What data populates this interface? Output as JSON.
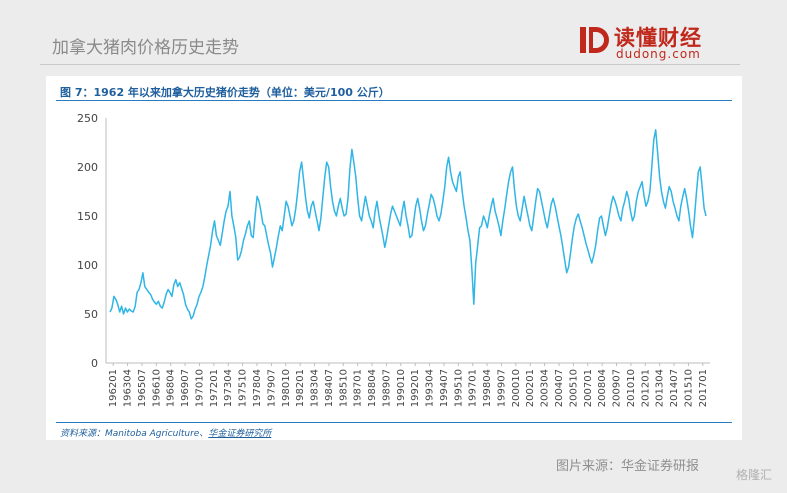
{
  "header": {
    "title": "加拿大猪肉价格历史走势"
  },
  "logo": {
    "name": "读懂财经",
    "domain": "dudong.com"
  },
  "figure": {
    "title": "图 7：1962 年以来加拿大历史猪价走势（单位：美元/100 公斤）",
    "source_prefix": "资料来源：Manitoba Agriculture、",
    "source_highlight": "华金证券研究所"
  },
  "footer": {
    "source": "图片来源：华金证券研报",
    "watermark": "格隆汇"
  },
  "colors": {
    "line": "#2fb5e6",
    "title_blue": "#1f5f9e",
    "logo_red": "#c0281c"
  },
  "chart_data": {
    "type": "line",
    "title": "",
    "xlabel": "",
    "ylabel": "",
    "ylim": [
      0,
      250
    ],
    "yticks": [
      0,
      50,
      100,
      150,
      200,
      250
    ],
    "grid": false,
    "x_ticks": [
      "196201",
      "196304",
      "196507",
      "196610",
      "196804",
      "196907",
      "197010",
      "197201",
      "197304",
      "197510",
      "197804",
      "197907",
      "198010",
      "198201",
      "198304",
      "198407",
      "198510",
      "198701",
      "198804",
      "198907",
      "199010",
      "199201",
      "199304",
      "199407",
      "199510",
      "199701",
      "199804",
      "199907",
      "200010",
      "200201",
      "200304",
      "200407",
      "200510",
      "200701",
      "200804",
      "200907",
      "201010",
      "201201",
      "201304",
      "201407",
      "201510",
      "201701"
    ],
    "series": [
      {
        "values": [
          52,
          56,
          68,
          65,
          60,
          52,
          58,
          50,
          56,
          52,
          55,
          53,
          52,
          58,
          72,
          75,
          82,
          92,
          78,
          75,
          72,
          70,
          65,
          62,
          60,
          63,
          58,
          56,
          62,
          70,
          75,
          72,
          68,
          80,
          85,
          78,
          82,
          76,
          70,
          60,
          55,
          52,
          45,
          48,
          55,
          60,
          68,
          72,
          78,
          88,
          100,
          110,
          120,
          135,
          145,
          130,
          125,
          120,
          132,
          145,
          155,
          160,
          175,
          150,
          140,
          128,
          105,
          108,
          115,
          125,
          132,
          140,
          145,
          130,
          128,
          150,
          170,
          165,
          155,
          142,
          140,
          130,
          120,
          112,
          98,
          108,
          118,
          130,
          140,
          135,
          150,
          165,
          160,
          150,
          140,
          145,
          158,
          175,
          195,
          205,
          188,
          170,
          155,
          148,
          160,
          165,
          155,
          145,
          135,
          148,
          170,
          190,
          205,
          200,
          180,
          165,
          155,
          150,
          160,
          168,
          158,
          150,
          152,
          168,
          198,
          218,
          205,
          190,
          168,
          150,
          145,
          158,
          170,
          160,
          150,
          145,
          138,
          155,
          165,
          150,
          140,
          130,
          118,
          128,
          140,
          152,
          160,
          155,
          150,
          145,
          140,
          155,
          165,
          150,
          140,
          128,
          130,
          145,
          160,
          168,
          158,
          145,
          135,
          140,
          152,
          162,
          172,
          168,
          160,
          150,
          145,
          152,
          165,
          180,
          200,
          210,
          195,
          185,
          180,
          175,
          190,
          195,
          175,
          160,
          148,
          135,
          125,
          95,
          60,
          102,
          120,
          138,
          140,
          150,
          145,
          138,
          150,
          160,
          168,
          155,
          148,
          140,
          130,
          145,
          158,
          172,
          185,
          195,
          200,
          178,
          160,
          150,
          145,
          158,
          170,
          160,
          150,
          140,
          135,
          150,
          165,
          178,
          175,
          165,
          155,
          145,
          138,
          150,
          162,
          168,
          160,
          150,
          140,
          130,
          118,
          105,
          92,
          98,
          112,
          128,
          140,
          148,
          152,
          145,
          138,
          130,
          122,
          115,
          108,
          102,
          110,
          120,
          135,
          148,
          150,
          140,
          130,
          138,
          150,
          162,
          170,
          165,
          158,
          150,
          145,
          158,
          165,
          175,
          168,
          155,
          145,
          150,
          165,
          175,
          180,
          185,
          170,
          160,
          165,
          175,
          200,
          228,
          238,
          215,
          190,
          175,
          165,
          158,
          170,
          180,
          175,
          165,
          158,
          150,
          145,
          160,
          170,
          178,
          168,
          155,
          140,
          128,
          148,
          172,
          195,
          200,
          180,
          158,
          150
        ]
      }
    ]
  }
}
